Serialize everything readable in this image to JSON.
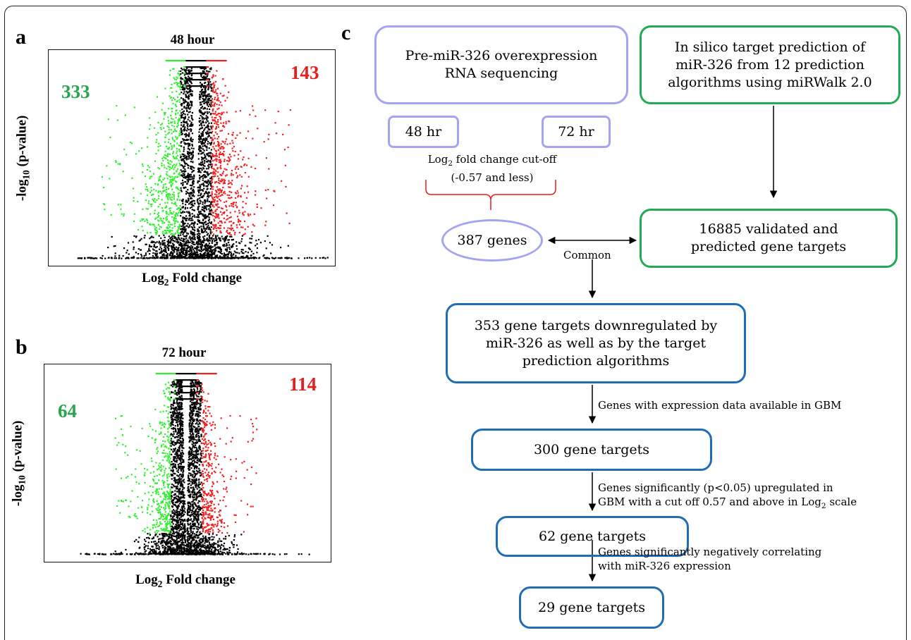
{
  "panel_a": {
    "letter": "a",
    "title": "48 hour",
    "down_count": "333",
    "up_count": "143",
    "ylabel_prefix": "-log",
    "ylabel_sub": "10",
    "ylabel_suffix": " (p-value)",
    "xlabel_prefix": "Log",
    "xlabel_sub": "2",
    "xlabel_suffix": " Fold change"
  },
  "panel_b": {
    "letter": "b",
    "title": "72 hour",
    "down_count": "64",
    "up_count": "114",
    "ylabel_prefix": "-log",
    "ylabel_sub": "10",
    "ylabel_suffix": " (p-value)",
    "xlabel_prefix": "Log",
    "xlabel_sub": "2",
    "xlabel_suffix": " Fold change"
  },
  "chart_data": [
    {
      "type": "scatter",
      "title": "48 hour",
      "xlabel": "Log2 Fold change",
      "ylabel": "-log10 (p-value)",
      "series": [
        {
          "name": "downregulated",
          "count": 333,
          "color": "#33ee33"
        },
        {
          "name": "upregulated",
          "count": 143,
          "color": "#ee2222"
        },
        {
          "name": "not significant",
          "color": "#000000"
        }
      ]
    },
    {
      "type": "scatter",
      "title": "72 hour",
      "xlabel": "Log2 Fold change",
      "ylabel": "-log10 (p-value)",
      "series": [
        {
          "name": "downregulated",
          "count": 64,
          "color": "#33ee33"
        },
        {
          "name": "upregulated",
          "count": 114,
          "color": "#ee2222"
        },
        {
          "name": "not significant",
          "color": "#000000"
        }
      ]
    }
  ],
  "panel_c": {
    "letter": "c",
    "seq_box": "Pre-miR-326 overexpression\nRNA sequencing",
    "insilico_box": "In silico target prediction of\nmiR-326 from 12 prediction\nalgorithms using miRWalk 2.0",
    "hr48": "48 hr",
    "hr72": "72 hr",
    "cutoff_prefix": "Log",
    "cutoff_sub": "2",
    "cutoff_suffix": " fold change cut-off",
    "cutoff_line2": "(-0.57 and less)",
    "genes387": "387 genes",
    "common": "Common",
    "validated_box": "16885 validated and\npredicted gene targets",
    "box353": "353 gene targets downregulated  by\nmiR-326 as well as by the target\nprediction algorithms",
    "note1": "Genes with expression data available in GBM",
    "box300": "300 gene targets",
    "note2_line1": "Genes significantly (p<0.05) upregulated in",
    "note2_line2_prefix": "GBM with a cut off 0.57 and above in Log",
    "note2_line2_sub": "2",
    "note2_line2_suffix": " scale",
    "box62": "62 gene targets",
    "note3": "Genes significantly negatively correlating\nwith miR-326 expression",
    "box29": "29 gene targets"
  },
  "colors": {
    "purple": "#a4a4f2",
    "green_border": "#22aa55",
    "blue": "#1f6db5",
    "bracket": "#e61e1e",
    "count_green": "#2aa44f",
    "count_red": "#e61e1e"
  }
}
